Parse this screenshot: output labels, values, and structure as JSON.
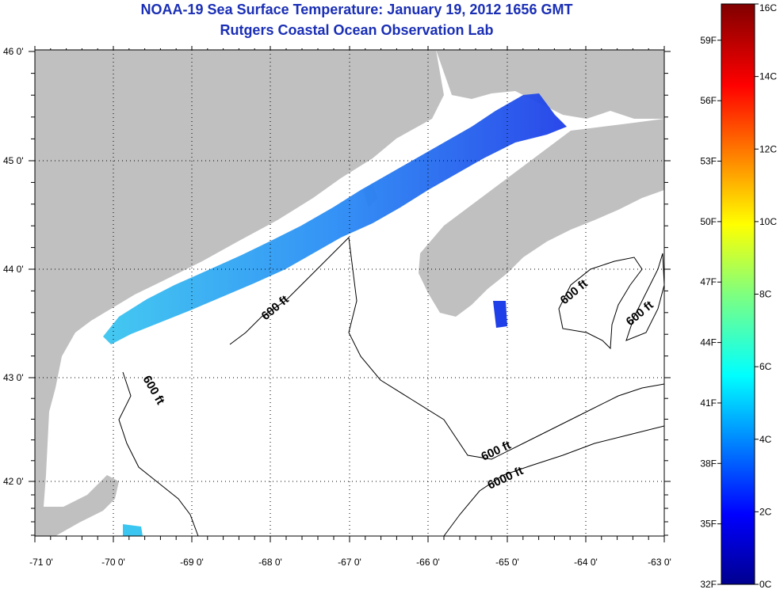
{
  "header": {
    "title": "NOAA-19 Sea Surface Temperature:  January 19, 2012 1656 GMT",
    "subtitle": "Rutgers Coastal Ocean Observation Lab"
  },
  "map": {
    "lon_labels": [
      "-71 0'",
      "-70 0'",
      "-69 0'",
      "-68 0'",
      "-67 0'",
      "-66 0'",
      "-65 0'",
      "-64 0'",
      "-63 0'"
    ],
    "lat_labels": [
      "46 0'",
      "45 0'",
      "44 0'",
      "43 0'",
      "42 0'"
    ],
    "contour_labels": [
      "600 ft",
      "600 ft",
      "600 ft",
      "600 ft",
      "600 ft",
      "6000 ft"
    ],
    "colors": {
      "land": "#c0c0c0",
      "ocean_cloud": "#ffffff",
      "grid": "#000000"
    }
  },
  "colorbar": {
    "celsius_labels": [
      "16C",
      "14C",
      "12C",
      "10C",
      "8C",
      "6C",
      "4C",
      "2C",
      "0C"
    ],
    "fahrenheit_labels": [
      "59F",
      "56F",
      "53F",
      "50F",
      "47F",
      "44F",
      "41F",
      "38F",
      "35F",
      "32F"
    ],
    "fahrenheit_values": [
      59,
      56,
      53,
      50,
      47,
      44,
      41,
      38,
      35,
      32
    ],
    "range_c": [
      0,
      16
    ]
  }
}
